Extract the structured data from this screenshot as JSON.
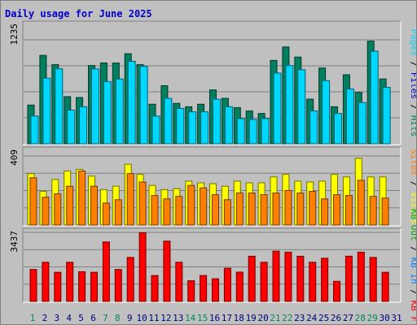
{
  "title": "Daily usage for June 2025",
  "colors": {
    "background": "#c0c0c0",
    "panel": "#c0c0c0",
    "title": "#0000cc",
    "hits": "#007f5f",
    "files": "#0000cc",
    "pages": "#00d7ff",
    "visits": "#ffff00",
    "sites": "#ff8000",
    "kbf": "#ff0000",
    "kbin": "#0080ff",
    "kbout": "#00aa00",
    "weekend_day": "#00885f",
    "weekday": "#000080"
  },
  "chart_data": [
    {
      "type": "bar",
      "name": "hits-files-pages",
      "ymax_label": "1235",
      "ylim": [
        0,
        1235
      ],
      "categories": [
        "1",
        "2",
        "3",
        "4",
        "5",
        "6",
        "7",
        "8",
        "9",
        "10",
        "11",
        "12",
        "13",
        "14",
        "15",
        "16",
        "17",
        "18",
        "19",
        "20",
        "21",
        "22",
        "23",
        "24",
        "25",
        "26",
        "27",
        "28",
        "29",
        "30",
        "31"
      ],
      "legend": [
        "Hits",
        "/",
        "Files",
        "/",
        "Pages"
      ],
      "series": [
        {
          "name": "Hits",
          "values": [
            460,
            1050,
            940,
            560,
            550,
            930,
            960,
            960,
            1070,
            940,
            470,
            690,
            480,
            440,
            470,
            640,
            540,
            430,
            390,
            360,
            990,
            1150,
            1030,
            530,
            900,
            440,
            820,
            610,
            1220,
            770,
            0
          ]
        },
        {
          "name": "Files",
          "values": [
            150,
            210,
            180,
            160,
            150,
            190,
            220,
            190,
            230,
            210,
            150,
            170,
            140,
            130,
            140,
            170,
            150,
            130,
            110,
            100,
            200,
            230,
            210,
            150,
            190,
            130,
            180,
            160,
            240,
            180,
            0
          ]
        },
        {
          "name": "Pages",
          "values": [
            330,
            780,
            890,
            400,
            440,
            890,
            740,
            770,
            980,
            920,
            330,
            540,
            420,
            380,
            380,
            530,
            440,
            300,
            290,
            300,
            840,
            930,
            880,
            390,
            750,
            360,
            650,
            490,
            1100,
            670,
            0
          ]
        }
      ]
    },
    {
      "type": "bar",
      "name": "visits-sites",
      "ymax_label": "409",
      "ylim": [
        0,
        409
      ],
      "categories": [
        "1",
        "2",
        "3",
        "4",
        "5",
        "6",
        "7",
        "8",
        "9",
        "10",
        "11",
        "12",
        "13",
        "14",
        "15",
        "16",
        "17",
        "18",
        "19",
        "20",
        "21",
        "22",
        "23",
        "24",
        "25",
        "26",
        "27",
        "28",
        "29",
        "30",
        "31"
      ],
      "legend": [
        "Visits",
        "/",
        "Sites"
      ],
      "series": [
        {
          "name": "Visits",
          "values": [
            305,
            200,
            270,
            320,
            330,
            290,
            210,
            230,
            360,
            300,
            235,
            210,
            215,
            260,
            250,
            245,
            230,
            260,
            250,
            250,
            285,
            300,
            260,
            255,
            260,
            300,
            285,
            395,
            285,
            285,
            0
          ]
        },
        {
          "name": "Sites",
          "values": [
            280,
            165,
            185,
            230,
            320,
            230,
            130,
            150,
            305,
            255,
            175,
            155,
            170,
            235,
            220,
            180,
            150,
            190,
            190,
            180,
            190,
            205,
            190,
            200,
            155,
            180,
            175,
            265,
            170,
            160,
            0
          ]
        }
      ]
    },
    {
      "type": "bar",
      "name": "kb-f",
      "ymax_label": "3437",
      "ylim": [
        0,
        3437
      ],
      "categories": [
        "1",
        "2",
        "3",
        "4",
        "5",
        "6",
        "7",
        "8",
        "9",
        "10",
        "11",
        "12",
        "13",
        "14",
        "15",
        "16",
        "17",
        "18",
        "19",
        "20",
        "21",
        "22",
        "23",
        "24",
        "25",
        "26",
        "27",
        "28",
        "29",
        "30",
        "31"
      ],
      "legend": [
        "KB F",
        "/",
        "KB In",
        "/",
        "KB Out"
      ],
      "series": [
        {
          "name": "KB F",
          "values": [
            1590,
            1950,
            1450,
            1950,
            1480,
            1450,
            2960,
            1590,
            2190,
            3420,
            1290,
            3000,
            1950,
            1030,
            1290,
            1130,
            1650,
            1460,
            2250,
            1950,
            2500,
            2450,
            2250,
            1950,
            2150,
            1000,
            2250,
            2450,
            2190,
            1450,
            0
          ]
        }
      ]
    }
  ]
}
